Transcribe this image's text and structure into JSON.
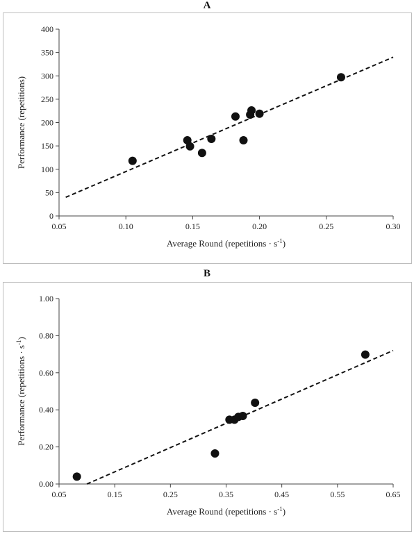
{
  "chart_data": [
    {
      "panel": "A",
      "type": "scatter",
      "xlabel": "Average Round (repetitions · s",
      "xlabel_sup": "-1",
      "xlabel_end": ")",
      "ylabel": "Performance (repetitions)",
      "ylabel_sup": "",
      "ylabel_end": "",
      "xlim": [
        0.05,
        0.3
      ],
      "ylim": [
        0,
        400
      ],
      "x_ticks": [
        0.05,
        0.1,
        0.15,
        0.2,
        0.25,
        0.3
      ],
      "x_tick_labels": [
        "0.05",
        "0.10",
        "0.15",
        "0.20",
        "0.25",
        "0.30"
      ],
      "y_ticks": [
        0,
        50,
        100,
        150,
        200,
        250,
        300,
        350,
        400
      ],
      "y_tick_labels": [
        "0",
        "50",
        "100",
        "150",
        "200",
        "250",
        "300",
        "350",
        "400"
      ],
      "grid": false,
      "points": [
        {
          "x": 0.105,
          "y": 118
        },
        {
          "x": 0.146,
          "y": 162
        },
        {
          "x": 0.148,
          "y": 149
        },
        {
          "x": 0.157,
          "y": 135
        },
        {
          "x": 0.164,
          "y": 165
        },
        {
          "x": 0.182,
          "y": 213
        },
        {
          "x": 0.188,
          "y": 162
        },
        {
          "x": 0.193,
          "y": 217
        },
        {
          "x": 0.194,
          "y": 226
        },
        {
          "x": 0.2,
          "y": 219
        },
        {
          "x": 0.261,
          "y": 297
        }
      ],
      "trendline": {
        "style": "dashed",
        "from": {
          "x": 0.055,
          "y": 40
        },
        "to": {
          "x": 0.3,
          "y": 340
        }
      }
    },
    {
      "panel": "B",
      "type": "scatter",
      "xlabel": "Average Round (repetitions · s",
      "xlabel_sup": "-1",
      "xlabel_end": ")",
      "ylabel": "Performance (repetitions · s",
      "ylabel_sup": "-1",
      "ylabel_end": ")",
      "xlim": [
        0.05,
        0.65
      ],
      "ylim": [
        0,
        1.0
      ],
      "x_ticks": [
        0.05,
        0.15,
        0.25,
        0.35,
        0.45,
        0.55,
        0.65
      ],
      "x_tick_labels": [
        "0.05",
        "0.15",
        "0.25",
        "0.35",
        "0.45",
        "0.55",
        "0.65"
      ],
      "y_ticks": [
        0,
        0.2,
        0.4,
        0.6,
        0.8,
        1.0
      ],
      "y_tick_labels": [
        "0.00",
        "0.20",
        "0.40",
        "0.60",
        "0.80",
        "1.00"
      ],
      "grid": false,
      "points": [
        {
          "x": 0.082,
          "y": 0.04
        },
        {
          "x": 0.33,
          "y": 0.165
        },
        {
          "x": 0.356,
          "y": 0.347
        },
        {
          "x": 0.365,
          "y": 0.347
        },
        {
          "x": 0.372,
          "y": 0.362
        },
        {
          "x": 0.38,
          "y": 0.367
        },
        {
          "x": 0.402,
          "y": 0.438
        },
        {
          "x": 0.6,
          "y": 0.698
        }
      ],
      "trendline": {
        "style": "dashed",
        "from": {
          "x": 0.1,
          "y": 0.0
        },
        "to": {
          "x": 0.65,
          "y": 0.72
        }
      }
    }
  ],
  "panel_labels": {
    "a": "A",
    "b": "B"
  }
}
